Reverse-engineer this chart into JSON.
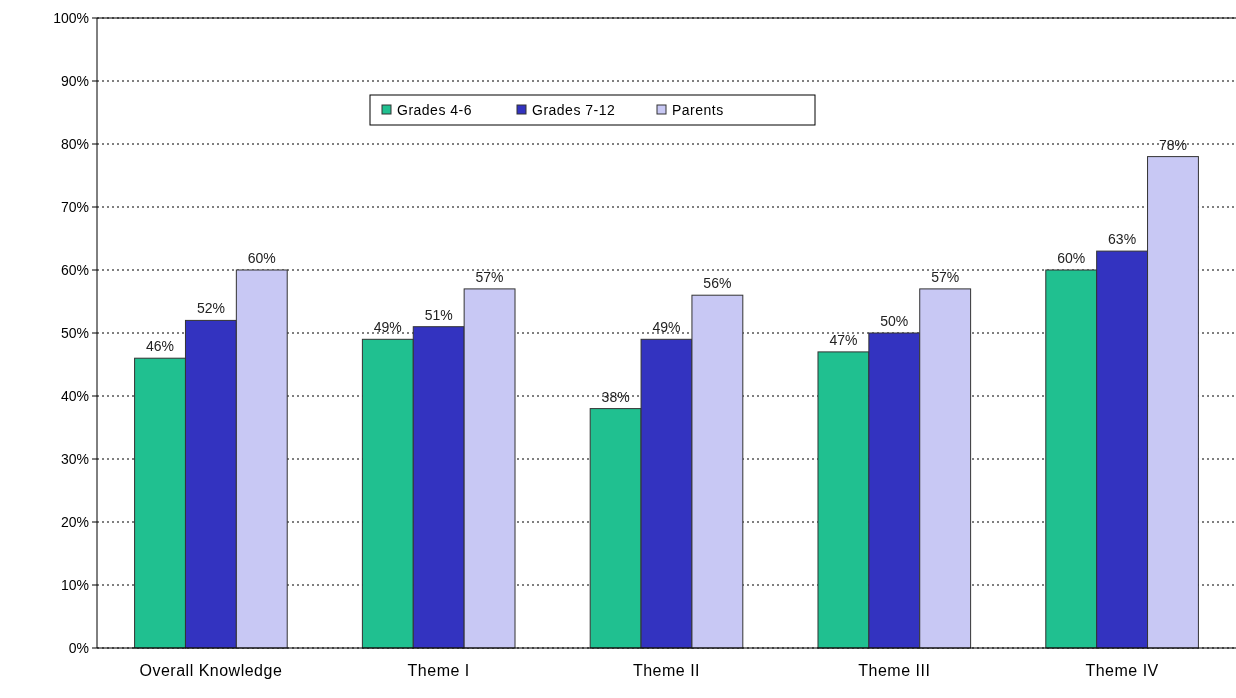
{
  "chart_data": {
    "type": "bar",
    "categories": [
      "Overall Knowledge",
      "Theme I",
      "Theme II",
      "Theme III",
      "Theme IV"
    ],
    "series": [
      {
        "name": "Grades 4-6",
        "color": "#20c090",
        "values": [
          46,
          49,
          38,
          47,
          60
        ],
        "value_labels": [
          "46%",
          "49%",
          "38%",
          "47%",
          "60%"
        ]
      },
      {
        "name": "Grades 7-12",
        "color": "#3333c0",
        "values": [
          52,
          51,
          49,
          50,
          63
        ],
        "value_labels": [
          "52%",
          "51%",
          "49%",
          "50%",
          "63%"
        ]
      },
      {
        "name": "Parents",
        "color": "#c8c8f4",
        "values": [
          60,
          57,
          56,
          57,
          78
        ],
        "value_labels": [
          "60%",
          "57%",
          "56%",
          "57%",
          "78%"
        ]
      }
    ],
    "ylim": [
      0,
      100
    ],
    "yticks": [
      {
        "value": 0,
        "label": "0%"
      },
      {
        "value": 10,
        "label": "10%"
      },
      {
        "value": 20,
        "label": "20%"
      },
      {
        "value": 30,
        "label": "30%"
      },
      {
        "value": 40,
        "label": "40%"
      },
      {
        "value": 50,
        "label": "50%"
      },
      {
        "value": 60,
        "label": "60%"
      },
      {
        "value": 70,
        "label": "70%"
      },
      {
        "value": 80,
        "label": "80%"
      },
      {
        "value": 90,
        "label": "90%"
      },
      {
        "value": 100,
        "label": "100%"
      }
    ],
    "grid": "y",
    "legend": "top"
  }
}
